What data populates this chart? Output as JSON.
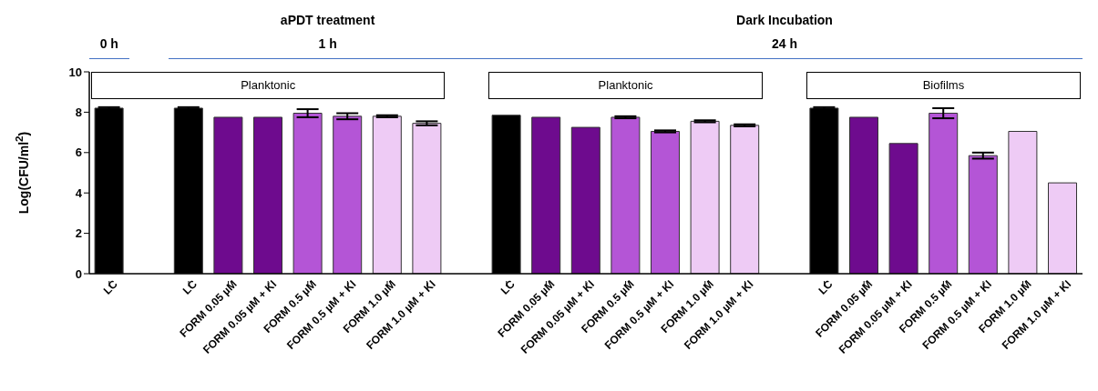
{
  "chart_data": {
    "type": "bar",
    "ylabel": "Log(CFU/ml$^{2}$)",
    "annotations": [
      "aPDT treatment",
      "Dark Incubation",
      "0 h",
      "1 h",
      "24 h",
      "Planktonic",
      "Planktonic",
      "Biofilms"
    ],
    "categories": [
      "LC",
      null,
      "LC",
      "FORM 0.05 µM",
      "FORM 0.05 µM + KI",
      "FORM 0.5 µM",
      "FORM 0.5 µM + KI",
      "FORM 1.0 µM",
      "FORM 1.0 µM + KI",
      null,
      "LC",
      "FORM 0.05 µM",
      "FORM 0.05 µM + KI",
      "FORM 0.5 µM",
      "FORM 0.5 µM + KI",
      "FORM 1.0 µM",
      "FORM 1.0 µM + KI",
      null,
      "LC",
      "FORM 0.05 µM",
      "FORM 0.05 µM + KI",
      "FORM 0.5 µM",
      "FORM 0.5 µM + KI",
      "FORM 1.0 µM",
      "FORM 1.0 µM + KI"
    ],
    "values": [
      8.2,
      null,
      8.2,
      7.75,
      7.75,
      7.95,
      7.8,
      7.8,
      7.45,
      null,
      7.85,
      7.75,
      7.25,
      7.75,
      7.05,
      7.55,
      7.35,
      null,
      8.2,
      7.75,
      6.45,
      7.95,
      5.85,
      7.05,
      4.5
    ],
    "errors": [
      0.05,
      null,
      0.05,
      null,
      null,
      0.2,
      0.15,
      0.05,
      0.1,
      null,
      null,
      null,
      null,
      0.05,
      0.05,
      0.05,
      0.05,
      null,
      0.05,
      null,
      null,
      0.25,
      0.15,
      null,
      null
    ],
    "colors": [
      "#000000",
      null,
      "#000000",
      "#6e0b8e",
      "#6e0b8e",
      "#b455d6",
      "#b455d6",
      "#eecbf5",
      "#eecbf5",
      null,
      "#000000",
      "#6e0b8e",
      "#6e0b8e",
      "#b455d6",
      "#b455d6",
      "#eecbf5",
      "#eecbf5",
      null,
      "#000000",
      "#6e0b8e",
      "#6e0b8e",
      "#b455d6",
      "#b455d6",
      "#eecbf5",
      "#eecbf5"
    ],
    "ylim": [
      0,
      10
    ],
    "yticks": [
      0,
      2,
      4,
      6,
      8,
      10
    ],
    "grid": false,
    "legend": false
  }
}
